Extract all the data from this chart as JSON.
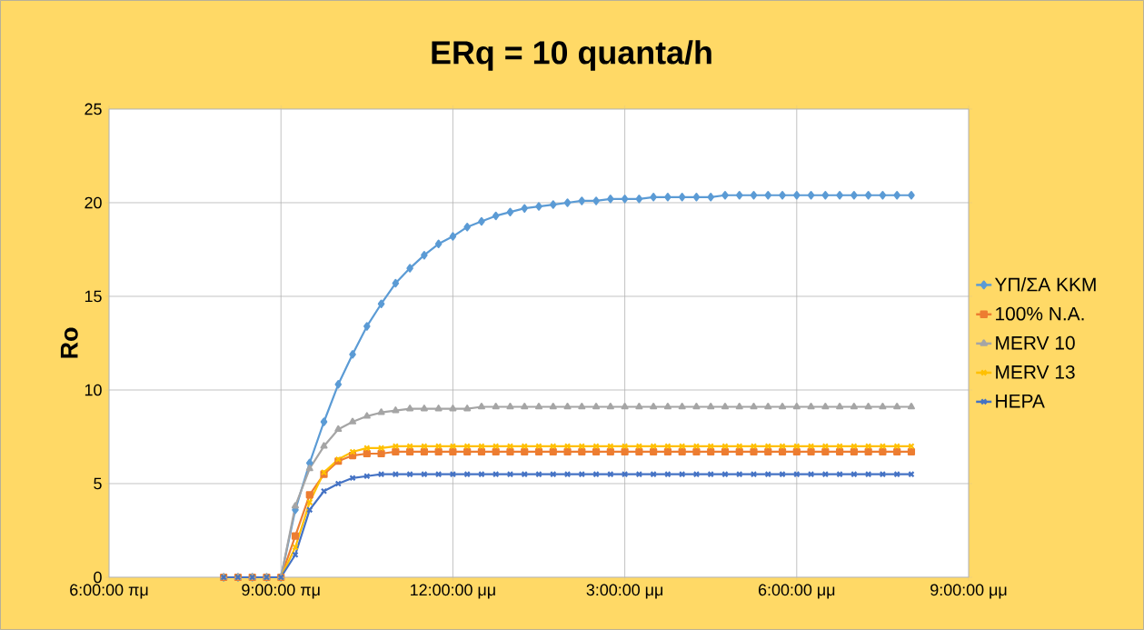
{
  "chart_data": {
    "type": "line",
    "title": "ERq = 10 quanta/h",
    "ylabel": "Ro",
    "categories": [
      "6:00:00 πμ",
      null,
      null,
      null,
      null,
      null,
      null,
      null,
      null,
      null,
      null,
      null,
      "9:00:00 πμ",
      null,
      null,
      null,
      null,
      null,
      null,
      null,
      null,
      null,
      null,
      null,
      "12:00:00 μμ",
      null,
      null,
      null,
      null,
      null,
      null,
      null,
      null,
      null,
      null,
      null,
      "3:00:00 μμ",
      null,
      null,
      null,
      null,
      null,
      null,
      null,
      null,
      null,
      null,
      null,
      "6:00:00 μμ",
      null,
      null,
      null,
      null,
      null,
      null,
      null,
      null,
      null,
      null,
      null,
      "9:00:00 μμ"
    ],
    "series": [
      {
        "name": "ΥΠ/ΣΑ ΚΚΜ",
        "color": "#5b9bd5",
        "marker": "diamond",
        "values": [
          null,
          null,
          null,
          null,
          null,
          null,
          null,
          null,
          0,
          0,
          0,
          0,
          0,
          3.6,
          6.1,
          8.3,
          10.3,
          11.9,
          13.4,
          14.6,
          15.7,
          16.5,
          17.2,
          17.8,
          18.2,
          18.7,
          19.0,
          19.3,
          19.5,
          19.7,
          19.8,
          19.9,
          20.0,
          20.1,
          20.1,
          20.2,
          20.2,
          20.2,
          20.3,
          20.3,
          20.3,
          20.3,
          20.3,
          20.4,
          20.4,
          20.4,
          20.4,
          20.4,
          20.4,
          20.4,
          20.4,
          20.4,
          20.4,
          20.4,
          20.4,
          20.4,
          20.4,
          null,
          null,
          null,
          null
        ]
      },
      {
        "name": "100% N.A.",
        "color": "#ed7d31",
        "marker": "square",
        "values": [
          null,
          null,
          null,
          null,
          null,
          null,
          null,
          null,
          0,
          0,
          0,
          0,
          0,
          2.2,
          4.4,
          5.5,
          6.2,
          6.5,
          6.6,
          6.6,
          6.7,
          6.7,
          6.7,
          6.7,
          6.7,
          6.7,
          6.7,
          6.7,
          6.7,
          6.7,
          6.7,
          6.7,
          6.7,
          6.7,
          6.7,
          6.7,
          6.7,
          6.7,
          6.7,
          6.7,
          6.7,
          6.7,
          6.7,
          6.7,
          6.7,
          6.7,
          6.7,
          6.7,
          6.7,
          6.7,
          6.7,
          6.7,
          6.7,
          6.7,
          6.7,
          6.7,
          6.7,
          null,
          null,
          null,
          null
        ]
      },
      {
        "name": "MERV 10",
        "color": "#a5a5a5",
        "marker": "triangle",
        "values": [
          null,
          null,
          null,
          null,
          null,
          null,
          null,
          null,
          0,
          0,
          0,
          0,
          0,
          3.8,
          5.8,
          7.0,
          7.9,
          8.3,
          8.6,
          8.8,
          8.9,
          9.0,
          9.0,
          9.0,
          9.0,
          9.0,
          9.1,
          9.1,
          9.1,
          9.1,
          9.1,
          9.1,
          9.1,
          9.1,
          9.1,
          9.1,
          9.1,
          9.1,
          9.1,
          9.1,
          9.1,
          9.1,
          9.1,
          9.1,
          9.1,
          9.1,
          9.1,
          9.1,
          9.1,
          9.1,
          9.1,
          9.1,
          9.1,
          9.1,
          9.1,
          9.1,
          9.1,
          null,
          null,
          null,
          null
        ]
      },
      {
        "name": "MERV 13",
        "color": "#ffc000",
        "marker": "cross",
        "values": [
          null,
          null,
          null,
          null,
          null,
          null,
          null,
          null,
          0,
          0,
          0,
          0,
          0,
          1.6,
          4.0,
          5.6,
          6.3,
          6.7,
          6.9,
          6.9,
          7.0,
          7.0,
          7.0,
          7.0,
          7.0,
          7.0,
          7.0,
          7.0,
          7.0,
          7.0,
          7.0,
          7.0,
          7.0,
          7.0,
          7.0,
          7.0,
          7.0,
          7.0,
          7.0,
          7.0,
          7.0,
          7.0,
          7.0,
          7.0,
          7.0,
          7.0,
          7.0,
          7.0,
          7.0,
          7.0,
          7.0,
          7.0,
          7.0,
          7.0,
          7.0,
          7.0,
          7.0,
          null,
          null,
          null,
          null
        ]
      },
      {
        "name": "HEPA",
        "color": "#4472c4",
        "marker": "cross",
        "values": [
          null,
          null,
          null,
          null,
          null,
          null,
          null,
          null,
          0,
          0,
          0,
          0,
          0,
          1.2,
          3.6,
          4.6,
          5.0,
          5.3,
          5.4,
          5.5,
          5.5,
          5.5,
          5.5,
          5.5,
          5.5,
          5.5,
          5.5,
          5.5,
          5.5,
          5.5,
          5.5,
          5.5,
          5.5,
          5.5,
          5.5,
          5.5,
          5.5,
          5.5,
          5.5,
          5.5,
          5.5,
          5.5,
          5.5,
          5.5,
          5.5,
          5.5,
          5.5,
          5.5,
          5.5,
          5.5,
          5.5,
          5.5,
          5.5,
          5.5,
          5.5,
          5.5,
          5.5,
          null,
          null,
          null,
          null
        ]
      }
    ],
    "ylim": [
      0,
      25
    ],
    "yticks": [
      0,
      5,
      10,
      15,
      20,
      25
    ],
    "grid": true,
    "legend": "right",
    "line_style": "solid"
  }
}
